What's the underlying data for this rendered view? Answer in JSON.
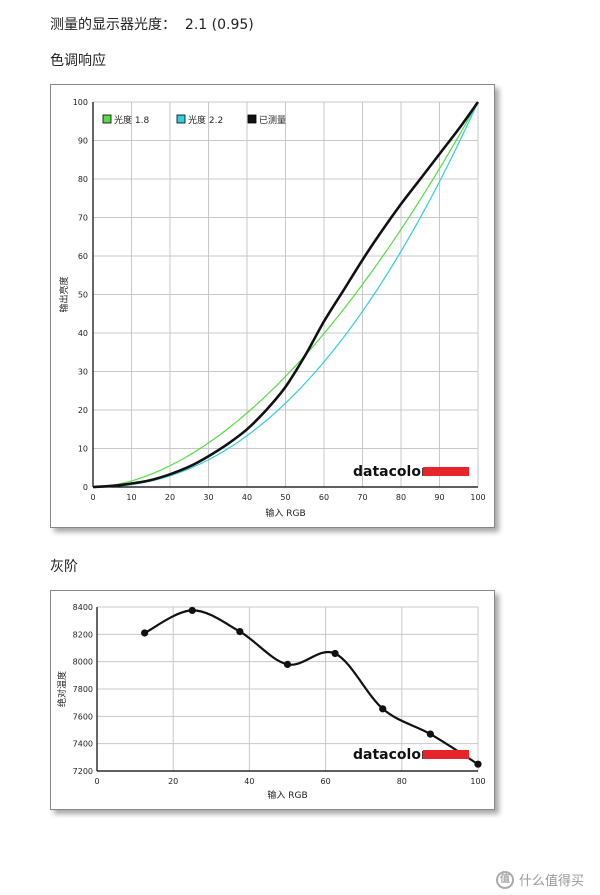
{
  "header": {
    "gamma_label": "测量的显示器光度：",
    "gamma_value": "2.1 (0.95)",
    "tone_title": "色调响应",
    "gray_title": "灰阶"
  },
  "brand": "datacolor",
  "watermark": "什么值得买",
  "colors": {
    "accent_red": "#e8242b",
    "green": "#55dd44",
    "cyan": "#33ccdd",
    "measured": "#111111"
  },
  "chart_data": [
    {
      "type": "line",
      "xlabel": "输入 RGB",
      "ylabel": "输出亮度",
      "xlim": [
        0,
        100
      ],
      "ylim": [
        0,
        100
      ],
      "xticks": [
        "0",
        "10",
        "20",
        "30",
        "40",
        "50",
        "60",
        "70",
        "80",
        "90",
        "100"
      ],
      "yticks": [
        "0",
        "10",
        "20",
        "30",
        "40",
        "50",
        "60",
        "70",
        "80",
        "90",
        "100"
      ],
      "grid": true,
      "legend": "top-left",
      "series": [
        {
          "name": "光度 1.8",
          "color": "#55dd44",
          "gamma": 1.8
        },
        {
          "name": "光度 2.2",
          "color": "#33ccdd",
          "gamma": 2.2
        },
        {
          "name": "已测量",
          "color": "#111111",
          "x": [
            0,
            5,
            10,
            15,
            20,
            25,
            30,
            35,
            40,
            45,
            50,
            55,
            60,
            65,
            70,
            75,
            80,
            85,
            90,
            95,
            100
          ],
          "y": [
            0,
            0.3,
            0.9,
            1.8,
            3.3,
            5.3,
            8,
            11.2,
            15,
            20,
            26,
            34,
            43,
            51,
            59,
            66.5,
            73.5,
            80,
            86.5,
            93,
            100
          ]
        }
      ]
    },
    {
      "type": "line",
      "xlabel": "输入 RGB",
      "ylabel": "绝对温度",
      "xlim": [
        0,
        100
      ],
      "ylim": [
        7200,
        8400
      ],
      "xticks": [
        "0",
        "20",
        "40",
        "60",
        "80",
        "100"
      ],
      "yticks": [
        "7200",
        "7400",
        "7600",
        "7800",
        "8000",
        "8200",
        "8400"
      ],
      "grid": true,
      "series": [
        {
          "name": "",
          "x": [
            12.5,
            25,
            37.5,
            50,
            62.5,
            75,
            87.5,
            100
          ],
          "y": [
            8210,
            8375,
            8220,
            7980,
            8060,
            7655,
            7470,
            7250
          ]
        }
      ]
    }
  ]
}
